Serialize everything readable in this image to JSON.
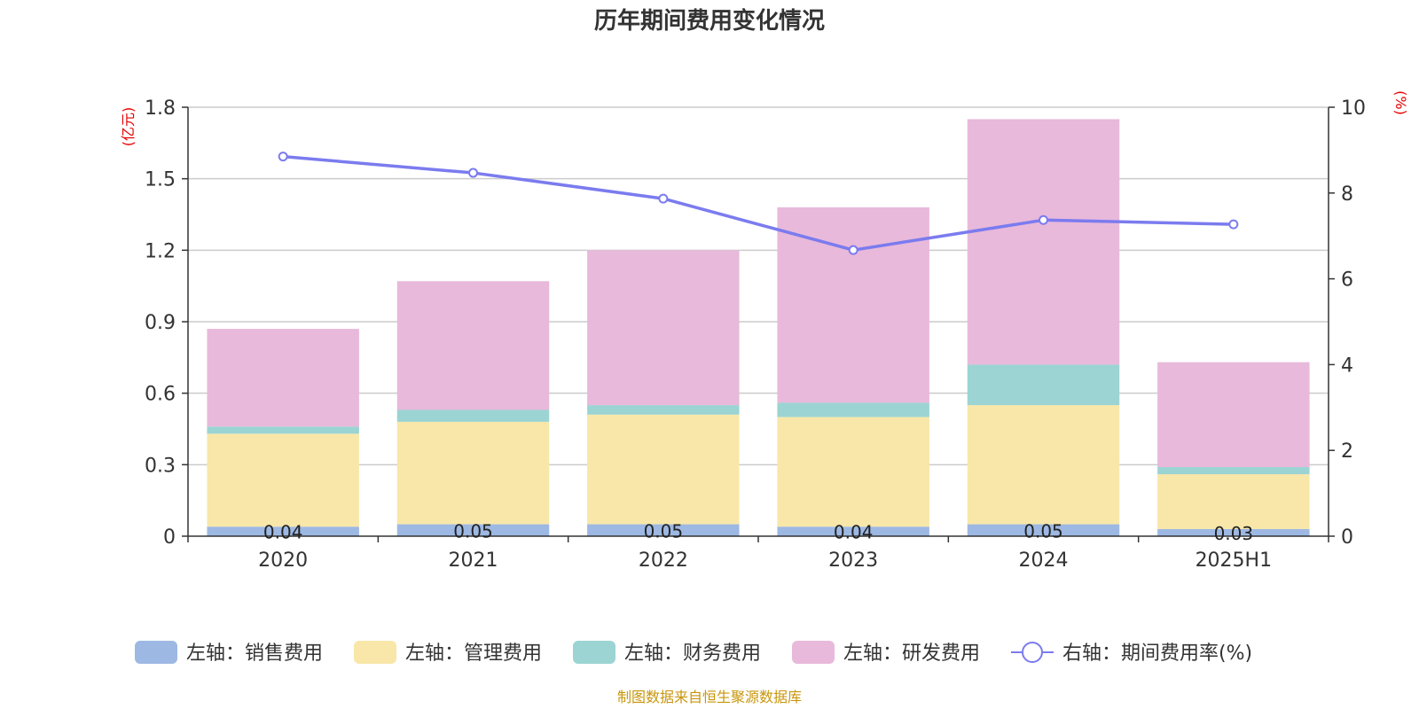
{
  "chart_data": {
    "type": "bar",
    "title": "历年期间费用变化情况",
    "categories": [
      "2020",
      "2021",
      "2022",
      "2023",
      "2024",
      "2025H1"
    ],
    "left_axis": {
      "unit": "(亿元)",
      "ylim": [
        0,
        1.8
      ],
      "ticks": [
        0,
        0.3,
        0.6,
        0.9,
        1.2,
        1.5,
        1.8
      ],
      "tick_labels": [
        "0",
        "0.3",
        "0.6",
        "0.9",
        "1.2",
        "1.5",
        "1.8"
      ]
    },
    "right_axis": {
      "unit": "(%)",
      "ylim": [
        0,
        10
      ],
      "ticks": [
        0,
        2,
        4,
        6,
        8,
        10
      ],
      "tick_labels": [
        "0",
        "2",
        "4",
        "6",
        "8",
        "10"
      ]
    },
    "series": [
      {
        "name": "左轴：销售费用",
        "type": "stacked-bar",
        "axis": "left",
        "color": "#9db8e3",
        "values": [
          0.04,
          0.05,
          0.05,
          0.04,
          0.05,
          0.03
        ],
        "labels": [
          "0.04",
          "0.05",
          "0.05",
          "0.04",
          "0.05",
          "0.03"
        ]
      },
      {
        "name": "左轴：管理费用",
        "type": "stacked-bar",
        "axis": "left",
        "color": "#f8e7a9",
        "values": [
          0.39,
          0.43,
          0.46,
          0.46,
          0.5,
          0.23
        ]
      },
      {
        "name": "左轴：财务费用",
        "type": "stacked-bar",
        "axis": "left",
        "color": "#9bd4d3",
        "values": [
          0.03,
          0.05,
          0.04,
          0.06,
          0.17,
          0.03
        ]
      },
      {
        "name": "左轴：研发费用",
        "type": "stacked-bar",
        "axis": "left",
        "color": "#e8b9da",
        "values": [
          0.41,
          0.54,
          0.65,
          0.82,
          1.03,
          0.44
        ]
      },
      {
        "name": "右轴：期间费用率(%)",
        "type": "line",
        "axis": "right",
        "color": "#7b7bef",
        "values": [
          8.85,
          8.47,
          7.87,
          6.67,
          7.37,
          7.27
        ]
      }
    ],
    "grid": true,
    "legend": "bottom"
  },
  "source": "制图数据来自恒生聚源数据库"
}
